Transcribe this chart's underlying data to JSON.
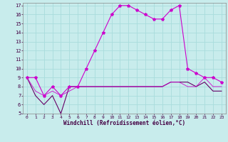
{
  "xlabel": "Windchill (Refroidissement éolien,°C)",
  "bg_color": "#c8ecec",
  "grid_color": "#a8dcdc",
  "line_color_bright": "#cc00cc",
  "line_color_dark": "#660066",
  "hours": [
    0,
    1,
    2,
    3,
    4,
    5,
    6,
    7,
    8,
    9,
    10,
    11,
    12,
    13,
    14,
    15,
    16,
    17,
    18,
    19,
    20,
    21,
    22,
    23
  ],
  "temp": [
    9,
    9,
    7,
    8,
    7,
    8,
    8,
    10,
    12,
    14,
    16,
    17,
    17,
    16.5,
    16,
    15.5,
    15.5,
    16.5,
    17,
    10,
    9.5,
    9,
    9,
    8.5
  ],
  "windchill": [
    9,
    7,
    6,
    7,
    5,
    8,
    8,
    8,
    8,
    8,
    8,
    8,
    8,
    8,
    8,
    8,
    8,
    8.5,
    8.5,
    8.5,
    8,
    8.5,
    7.5,
    7.5
  ],
  "feel": [
    9,
    7.5,
    7,
    7.5,
    7,
    7.5,
    8,
    8,
    8,
    8,
    8,
    8,
    8,
    8,
    8,
    8,
    8,
    8.5,
    8.5,
    8,
    8,
    9,
    8,
    8
  ],
  "ylim": [
    5,
    17
  ],
  "yticks": [
    5,
    6,
    7,
    8,
    9,
    10,
    11,
    12,
    13,
    14,
    15,
    16,
    17
  ],
  "xlim": [
    -0.5,
    23.5
  ]
}
